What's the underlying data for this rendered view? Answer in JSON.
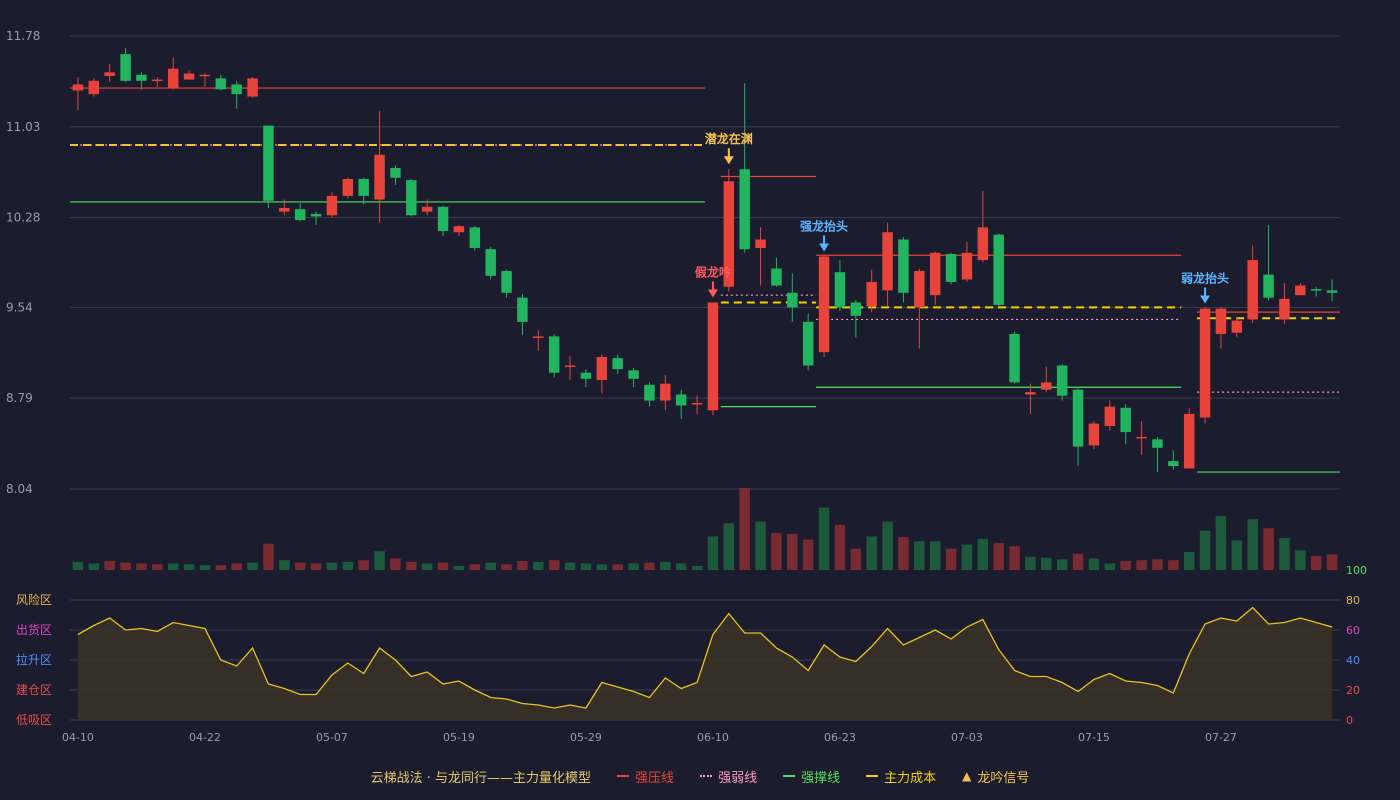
{
  "chart_data": {
    "type": "candlestick",
    "colors": {
      "up": "#e8443b",
      "down": "#22b55f",
      "resistance": "#e8443b",
      "weak": "#ff9ac0",
      "support": "#4fe05a",
      "cost": "#f5d000",
      "signal_gold": "#f5c34a",
      "signal_blue": "#5ab4ff",
      "signal_red": "#ff5a5a",
      "osc_line": "#e8c21c",
      "osc_fill": "#3a3326",
      "grid": "#3a3c50",
      "axis_text": "#9a9aa8",
      "background": "#1b1c2e"
    },
    "price_axis": {
      "ylim": [
        8.04,
        11.78
      ],
      "ticks": [
        "11.78",
        "11.03",
        "10.28",
        "9.54",
        "8.79",
        "8.04"
      ]
    },
    "x_ticks": [
      "04-10",
      "04-22",
      "05-07",
      "05-19",
      "05-29",
      "06-10",
      "06-23",
      "07-03",
      "07-15",
      "07-27"
    ],
    "x_tick_index": [
      0,
      8,
      16,
      24,
      32,
      40,
      48,
      56,
      64,
      72
    ],
    "candles": [
      [
        11.33,
        11.38,
        11.44,
        11.17
      ],
      [
        11.3,
        11.41,
        11.43,
        11.28
      ],
      [
        11.45,
        11.48,
        11.55,
        11.4
      ],
      [
        11.63,
        11.41,
        11.68,
        11.4
      ],
      [
        11.46,
        11.41,
        11.48,
        11.34
      ],
      [
        11.41,
        11.42,
        11.44,
        11.36
      ],
      [
        11.35,
        11.51,
        11.6,
        11.34
      ],
      [
        11.42,
        11.47,
        11.5,
        11.42
      ],
      [
        11.46,
        11.46,
        11.47,
        11.36
      ],
      [
        11.43,
        11.34,
        11.46,
        11.33
      ],
      [
        11.38,
        11.3,
        11.41,
        11.18
      ],
      [
        11.28,
        11.43,
        11.44,
        11.27
      ],
      [
        11.04,
        10.42,
        11.04,
        10.36
      ],
      [
        10.33,
        10.36,
        10.43,
        10.3
      ],
      [
        10.35,
        10.26,
        10.4,
        10.25
      ],
      [
        10.31,
        10.29,
        10.33,
        10.22
      ],
      [
        10.3,
        10.46,
        10.49,
        10.28
      ],
      [
        10.46,
        10.6,
        10.61,
        10.44
      ],
      [
        10.6,
        10.46,
        10.61,
        10.39
      ],
      [
        10.43,
        10.8,
        11.16,
        10.24
      ],
      [
        10.69,
        10.61,
        10.71,
        10.55
      ],
      [
        10.59,
        10.3,
        10.6,
        10.29
      ],
      [
        10.33,
        10.37,
        10.43,
        10.3
      ],
      [
        10.37,
        10.17,
        10.38,
        10.13
      ],
      [
        10.16,
        10.21,
        10.22,
        10.13
      ],
      [
        10.2,
        10.03,
        10.21,
        10.01
      ],
      [
        10.02,
        9.8,
        10.04,
        9.77
      ],
      [
        9.84,
        9.66,
        9.85,
        9.62
      ],
      [
        9.62,
        9.42,
        9.65,
        9.31
      ],
      [
        9.3,
        9.3,
        9.35,
        9.18
      ],
      [
        9.3,
        9.0,
        9.32,
        8.96
      ],
      [
        9.05,
        9.06,
        9.14,
        8.94
      ],
      [
        9.0,
        8.95,
        9.03,
        8.88
      ],
      [
        8.94,
        9.13,
        9.15,
        8.83
      ],
      [
        9.12,
        9.03,
        9.15,
        8.99
      ],
      [
        9.02,
        8.95,
        9.04,
        8.88
      ],
      [
        8.9,
        8.77,
        8.92,
        8.72
      ],
      [
        8.77,
        8.91,
        8.98,
        8.69
      ],
      [
        8.82,
        8.73,
        8.86,
        8.62
      ],
      [
        8.75,
        8.75,
        8.81,
        8.66
      ],
      [
        8.69,
        9.58,
        9.58,
        8.65
      ],
      [
        9.71,
        10.58,
        10.68,
        9.67
      ],
      [
        10.68,
        10.02,
        11.39,
        9.99
      ],
      [
        10.03,
        10.1,
        10.2,
        9.72
      ],
      [
        9.86,
        9.72,
        9.95,
        9.71
      ],
      [
        9.66,
        9.54,
        9.82,
        9.42
      ],
      [
        9.42,
        9.06,
        9.49,
        9.02
      ],
      [
        9.17,
        9.96,
        9.96,
        9.13
      ],
      [
        9.83,
        9.54,
        9.93,
        9.51
      ],
      [
        9.58,
        9.47,
        9.6,
        9.29
      ],
      [
        9.55,
        9.75,
        9.85,
        9.5
      ],
      [
        9.68,
        10.16,
        10.24,
        9.55
      ],
      [
        10.1,
        9.66,
        10.12,
        9.58
      ],
      [
        9.54,
        9.84,
        9.86,
        9.2
      ],
      [
        9.64,
        9.99,
        10.0,
        9.56
      ],
      [
        9.98,
        9.75,
        9.99,
        9.73
      ],
      [
        9.77,
        9.99,
        10.08,
        9.75
      ],
      [
        9.93,
        10.2,
        10.5,
        9.91
      ],
      [
        10.14,
        9.56,
        10.15,
        9.55
      ],
      [
        9.32,
        8.92,
        9.34,
        8.91
      ],
      [
        8.82,
        8.84,
        8.91,
        8.66
      ],
      [
        8.86,
        8.92,
        9.05,
        8.84
      ],
      [
        9.06,
        8.81,
        9.07,
        8.77
      ],
      [
        8.86,
        8.39,
        8.87,
        8.23
      ],
      [
        8.4,
        8.58,
        8.6,
        8.37
      ],
      [
        8.56,
        8.72,
        8.77,
        8.52
      ],
      [
        8.71,
        8.51,
        8.74,
        8.41
      ],
      [
        8.47,
        8.47,
        8.6,
        8.32
      ],
      [
        8.45,
        8.38,
        8.47,
        8.18
      ],
      [
        8.27,
        8.23,
        8.36,
        8.2
      ],
      [
        8.21,
        8.66,
        8.71,
        8.21
      ],
      [
        8.63,
        9.53,
        9.54,
        8.58
      ],
      [
        9.32,
        9.53,
        9.54,
        9.2
      ],
      [
        9.33,
        9.43,
        9.46,
        9.29
      ],
      [
        9.44,
        9.93,
        10.05,
        9.41
      ],
      [
        9.81,
        9.62,
        10.22,
        9.6
      ],
      [
        9.44,
        9.61,
        9.74,
        9.4
      ],
      [
        9.64,
        9.72,
        9.74,
        9.64
      ],
      [
        9.69,
        9.68,
        9.71,
        9.63
      ],
      [
        9.68,
        9.66,
        9.77,
        9.59
      ]
    ],
    "volume": [
      {
        "v": 10,
        "up": false
      },
      {
        "v": 8,
        "up": false
      },
      {
        "v": 11,
        "up": true
      },
      {
        "v": 9,
        "up": true
      },
      {
        "v": 8,
        "up": true
      },
      {
        "v": 7,
        "up": true
      },
      {
        "v": 8,
        "up": false
      },
      {
        "v": 7,
        "up": false
      },
      {
        "v": 6,
        "up": false
      },
      {
        "v": 6,
        "up": true
      },
      {
        "v": 8,
        "up": true
      },
      {
        "v": 9,
        "up": false
      },
      {
        "v": 32,
        "up": true
      },
      {
        "v": 12,
        "up": false
      },
      {
        "v": 9,
        "up": true
      },
      {
        "v": 8,
        "up": true
      },
      {
        "v": 9,
        "up": false
      },
      {
        "v": 10,
        "up": false
      },
      {
        "v": 12,
        "up": true
      },
      {
        "v": 23,
        "up": false
      },
      {
        "v": 14,
        "up": true
      },
      {
        "v": 10,
        "up": true
      },
      {
        "v": 8,
        "up": false
      },
      {
        "v": 9,
        "up": true
      },
      {
        "v": 5,
        "up": false
      },
      {
        "v": 7,
        "up": true
      },
      {
        "v": 9,
        "up": false
      },
      {
        "v": 7,
        "up": true
      },
      {
        "v": 11,
        "up": true
      },
      {
        "v": 10,
        "up": false
      },
      {
        "v": 12,
        "up": true
      },
      {
        "v": 9,
        "up": false
      },
      {
        "v": 8,
        "up": false
      },
      {
        "v": 7,
        "up": false
      },
      {
        "v": 7,
        "up": true
      },
      {
        "v": 8,
        "up": false
      },
      {
        "v": 9,
        "up": true
      },
      {
        "v": 10,
        "up": false
      },
      {
        "v": 8,
        "up": false
      },
      {
        "v": 5,
        "up": false
      },
      {
        "v": 41,
        "up": false
      },
      {
        "v": 57,
        "up": false
      },
      {
        "v": 100,
        "up": true
      },
      {
        "v": 59,
        "up": false
      },
      {
        "v": 45,
        "up": true
      },
      {
        "v": 44,
        "up": true
      },
      {
        "v": 37,
        "up": true
      },
      {
        "v": 76,
        "up": false
      },
      {
        "v": 55,
        "up": true
      },
      {
        "v": 26,
        "up": true
      },
      {
        "v": 41,
        "up": false
      },
      {
        "v": 59,
        "up": false
      },
      {
        "v": 40,
        "up": true
      },
      {
        "v": 35,
        "up": false
      },
      {
        "v": 35,
        "up": false
      },
      {
        "v": 26,
        "up": true
      },
      {
        "v": 31,
        "up": false
      },
      {
        "v": 38,
        "up": false
      },
      {
        "v": 33,
        "up": true
      },
      {
        "v": 29,
        "up": true
      },
      {
        "v": 16,
        "up": false
      },
      {
        "v": 15,
        "up": false
      },
      {
        "v": 13,
        "up": false
      },
      {
        "v": 20,
        "up": true
      },
      {
        "v": 14,
        "up": false
      },
      {
        "v": 8,
        "up": false
      },
      {
        "v": 11,
        "up": true
      },
      {
        "v": 12,
        "up": true
      },
      {
        "v": 13,
        "up": true
      },
      {
        "v": 12,
        "up": true
      },
      {
        "v": 22,
        "up": false
      },
      {
        "v": 48,
        "up": false
      },
      {
        "v": 66,
        "up": false
      },
      {
        "v": 36,
        "up": false
      },
      {
        "v": 62,
        "up": false
      },
      {
        "v": 51,
        "up": true
      },
      {
        "v": 39,
        "up": false
      },
      {
        "v": 24,
        "up": false
      },
      {
        "v": 17,
        "up": true
      },
      {
        "v": 19,
        "up": true
      }
    ],
    "volume_axis_label": "100",
    "oscillator": {
      "ylim": [
        0,
        80
      ],
      "ticks": [
        "80",
        "60",
        "40",
        "20",
        "0"
      ],
      "zone_labels": [
        "风险区",
        "出货区",
        "拉升区",
        "建仓区",
        "低吸区"
      ],
      "zone_colors": [
        "#e8b34a",
        "#e040c8",
        "#4a90ff",
        "#e84a4a",
        "#e84a4a"
      ],
      "tick_colors": [
        "#e8b34a",
        "#e040c8",
        "#4a90ff",
        "#e84a4a",
        "#e84a4a"
      ],
      "values": [
        57,
        63,
        68,
        60,
        61,
        59,
        65,
        63,
        61,
        40,
        36,
        48,
        24,
        21,
        17,
        17,
        30,
        38,
        31,
        48,
        40,
        29,
        32,
        24,
        26,
        20,
        15,
        14,
        11,
        10,
        8,
        10,
        8,
        25,
        22,
        19,
        15,
        28,
        21,
        25,
        57,
        71,
        58,
        58,
        48,
        42,
        33,
        50,
        42,
        39,
        49,
        61,
        50,
        55,
        60,
        54,
        62,
        67,
        47,
        33,
        29,
        29,
        25,
        19,
        27,
        31,
        26,
        25,
        23,
        18,
        44,
        64,
        68,
        66,
        75,
        64,
        65,
        68,
        65,
        62
      ]
    },
    "lines": [
      {
        "kind": "resistance",
        "from": 0,
        "to": 39,
        "y": 11.35,
        "style": "solid"
      },
      {
        "kind": "cost",
        "from": 0,
        "to": 39,
        "y": 10.88,
        "style": "dashed"
      },
      {
        "kind": "weak",
        "from": 0,
        "to": 39,
        "y": 10.88,
        "style": "dotted"
      },
      {
        "kind": "support",
        "from": 0,
        "to": 39,
        "y": 10.41,
        "style": "solid"
      },
      {
        "kind": "resistance",
        "from": 41,
        "to": 46,
        "y": 10.62,
        "style": "solid"
      },
      {
        "kind": "weak",
        "from": 41,
        "to": 46,
        "y": 9.64,
        "style": "dotted"
      },
      {
        "kind": "cost",
        "from": 41,
        "to": 46,
        "y": 9.58,
        "style": "dashed"
      },
      {
        "kind": "support",
        "from": 41,
        "to": 46,
        "y": 8.72,
        "style": "solid"
      },
      {
        "kind": "resistance",
        "from": 47,
        "to": 69,
        "y": 9.97,
        "style": "solid"
      },
      {
        "kind": "cost",
        "from": 47,
        "to": 69,
        "y": 9.54,
        "style": "dashed"
      },
      {
        "kind": "weak",
        "from": 47,
        "to": 69,
        "y": 9.44,
        "style": "dotted"
      },
      {
        "kind": "support",
        "from": 47,
        "to": 69,
        "y": 8.88,
        "style": "solid"
      },
      {
        "kind": "resistance",
        "from": 71,
        "to": 79,
        "y": 9.5,
        "style": "solid"
      },
      {
        "kind": "cost",
        "from": 71,
        "to": 79,
        "y": 9.45,
        "style": "dashed"
      },
      {
        "kind": "weak",
        "from": 71,
        "to": 79,
        "y": 8.84,
        "style": "dotted"
      },
      {
        "kind": "support",
        "from": 71,
        "to": 79,
        "y": 8.18,
        "style": "solid"
      }
    ],
    "signals": [
      {
        "label": "潜龙在渊",
        "index": 41,
        "y": 10.68,
        "color": "#f5c34a"
      },
      {
        "label": "假龙吟",
        "index": 40,
        "y": 9.58,
        "color": "#ff5a5a"
      },
      {
        "label": "强龙抬头",
        "index": 47,
        "y": 9.96,
        "color": "#5ab4ff"
      },
      {
        "label": "弱龙抬头",
        "index": 71,
        "y": 9.53,
        "color": "#5ab4ff"
      }
    ]
  },
  "legend": {
    "title": "云梯战法 · 与龙同行——主力量化模型",
    "items": [
      {
        "label": "强压线",
        "color": "#e8443b",
        "style": "solid"
      },
      {
        "label": "强弱线",
        "color": "#ff9ac0",
        "style": "dotted"
      },
      {
        "label": "强撑线",
        "color": "#4fe05a",
        "style": "solid"
      },
      {
        "label": "主力成本",
        "color": "#f5d000",
        "style": "dashed"
      },
      {
        "label": "龙吟信号",
        "color": "#f5c34a",
        "style": "triangle"
      }
    ]
  }
}
